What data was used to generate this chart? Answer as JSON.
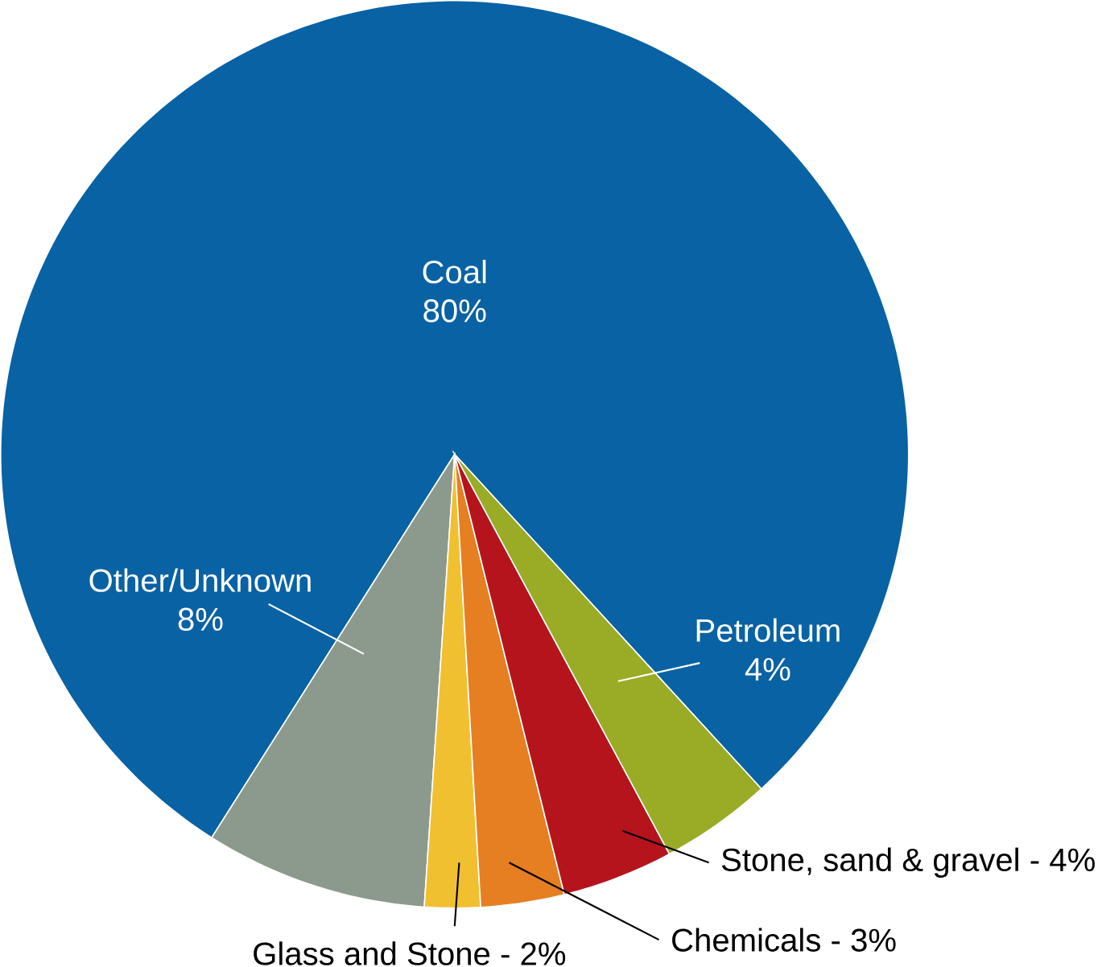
{
  "chart_data": {
    "type": "pie",
    "categories": [
      "Coal",
      "Other/Unknown",
      "Glass and Stone",
      "Chemicals",
      "Stone, sand & gravel",
      "Petroleum"
    ],
    "values": [
      80,
      8,
      2,
      3,
      4,
      4
    ],
    "value_labels": [
      "80%",
      "8%",
      "2%",
      "3%",
      "4%",
      "4%"
    ],
    "annotations": [
      "-",
      "-",
      "-"
    ],
    "colors": [
      "#0862a4",
      "#8c9a8e",
      "#f0c030",
      "#e67e22",
      "#b5141d",
      "#9aab25"
    ]
  }
}
